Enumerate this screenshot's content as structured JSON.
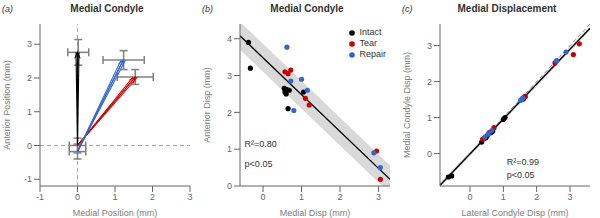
{
  "chart_data": [
    {
      "type": "arrows",
      "title": "Medial Condyle",
      "panel_label": "(a)",
      "xlabel": "Medial Position (mm)",
      "ylabel": "Anterior Position (mm)",
      "xlim": [
        -1,
        3
      ],
      "ylim": [
        -1.2,
        3.6
      ],
      "xticks": [
        -1,
        0,
        1,
        2,
        3
      ],
      "yticks": [
        -1,
        0,
        1,
        2,
        3
      ],
      "reference_lines": {
        "x": [
          0
        ],
        "y": [
          0
        ],
        "line_style": "dashed"
      },
      "error_bars": [
        {
          "x": 0.02,
          "y": 2.76,
          "xerr": 0.28,
          "yerr": 0.38,
          "color": "gray"
        },
        {
          "x": 1.54,
          "y": 2.03,
          "xerr": 0.48,
          "yerr": 0.22,
          "color": "gray"
        },
        {
          "x": 1.23,
          "y": 2.53,
          "xerr": 0.55,
          "yerr": 0.28,
          "color": "gray"
        },
        {
          "x": 0.0,
          "y": 0.0,
          "xerr": 0.22,
          "yerr": 0.22,
          "color": "gray"
        },
        {
          "x": 0.0,
          "y": -0.18,
          "xerr": 0.22,
          "yerr": 0.22,
          "color": "gray"
        }
      ],
      "series": [
        {
          "color": "#000000",
          "lines": [
            [
              0.0,
              0.0,
              -0.04,
              2.76
            ],
            [
              0.0,
              0.0,
              0.04,
              2.76
            ]
          ],
          "arrow": [
            0.0,
            0.0,
            0.0,
            2.76
          ]
        },
        {
          "color": "#cc0000",
          "lines": [
            [
              0.0,
              0.0,
              1.48,
              2.03
            ],
            [
              0.0,
              0.0,
              1.54,
              2.03
            ],
            [
              0.0,
              0.0,
              1.6,
              2.03
            ]
          ],
          "arrow": [
            0.0,
            0.0,
            1.54,
            2.03
          ]
        },
        {
          "color": "#3366cc",
          "lines": [
            [
              0.0,
              -0.18,
              1.16,
              2.53
            ],
            [
              0.0,
              -0.18,
              1.22,
              2.53
            ],
            [
              0.0,
              -0.18,
              1.28,
              2.53
            ]
          ],
          "arrow": [
            0.0,
            -0.18,
            1.22,
            2.53
          ]
        }
      ]
    },
    {
      "type": "scatter",
      "title": "Medial Condyle",
      "panel_label": "(b)",
      "xlabel": "Medial Disp (mm)",
      "ylabel": "Anterior Disp (mm)",
      "xlim": [
        -0.6,
        3.3
      ],
      "ylim": [
        0,
        4.4
      ],
      "xticks": [
        0,
        1,
        2,
        3
      ],
      "yticks": [
        0,
        1,
        2,
        3,
        4
      ],
      "legend": "upper right",
      "series": [
        {
          "name": "Intact",
          "color": "#000000",
          "x": [
            -0.38,
            -0.33,
            0.55,
            0.57,
            0.6,
            0.62,
            0.65,
            0.68,
            1.05
          ],
          "y": [
            3.9,
            3.2,
            2.65,
            2.55,
            2.5,
            2.62,
            2.1,
            2.6,
            2.55
          ]
        },
        {
          "name": "Tear",
          "color": "#cc0000",
          "x": [
            0.57,
            0.65,
            0.72,
            1.1,
            1.2,
            2.95,
            3.05
          ],
          "y": [
            3.1,
            3.05,
            3.15,
            2.38,
            2.2,
            0.95,
            0.18
          ]
        },
        {
          "name": "Repair",
          "color": "#3366cc",
          "x": [
            0.62,
            0.72,
            0.8,
            1.0,
            1.15,
            2.88,
            3.05
          ],
          "y": [
            3.77,
            2.85,
            2.05,
            2.9,
            2.6,
            0.9,
            0.5
          ]
        }
      ],
      "fit": {
        "x": [
          -0.6,
          3.3
        ],
        "y": [
          4.08,
          0.18
        ],
        "ci_width": 0.38,
        "color": "#000000",
        "band_color": "#aaaaaa"
      },
      "annotations": [
        {
          "text": "R²=0.80",
          "x": -0.48,
          "y": 1.05
        },
        {
          "text": "p<0.05",
          "x": -0.48,
          "y": 0.52
        }
      ]
    },
    {
      "type": "scatter",
      "title": "Medial Displacement",
      "panel_label": "(c)",
      "xlabel": "Lateral Condyle Disp (mm)",
      "ylabel": "Medial Condyle Disp (mm)",
      "xlim": [
        -0.9,
        3.6
      ],
      "ylim": [
        -0.9,
        3.6
      ],
      "xticks": [
        0,
        1,
        2,
        3
      ],
      "yticks": [
        0,
        1,
        2,
        3
      ],
      "series": [
        {
          "name": "Intact",
          "color": "#000000",
          "x": [
            -0.65,
            -0.55,
            0.35,
            0.42,
            0.48,
            0.52,
            0.62,
            0.68,
            1.0,
            1.05,
            1.6,
            1.65
          ],
          "y": [
            -0.65,
            -0.62,
            0.32,
            0.42,
            0.44,
            0.5,
            0.58,
            0.62,
            0.95,
            1.0,
            1.52,
            1.58
          ]
        },
        {
          "name": "Tear",
          "color": "#cc0000",
          "x": [
            0.38,
            0.58,
            0.72,
            1.55,
            1.65,
            2.55,
            3.1,
            3.28
          ],
          "y": [
            0.4,
            0.58,
            0.72,
            1.5,
            1.58,
            2.52,
            2.75,
            3.05
          ]
        },
        {
          "name": "Repair",
          "color": "#3366cc",
          "x": [
            0.45,
            0.55,
            0.65,
            1.52,
            1.58,
            2.6,
            2.88
          ],
          "y": [
            0.46,
            0.54,
            0.64,
            1.48,
            1.54,
            2.58,
            2.82
          ]
        }
      ],
      "fit": {
        "x": [
          -0.9,
          3.6
        ],
        "y": [
          -0.88,
          3.48
        ],
        "ci_width": 0.06,
        "color": "#000000",
        "band_color": "#aaaaaa"
      },
      "dashed": {
        "x": [
          -0.9,
          3.6
        ],
        "y": [
          -0.9,
          3.6
        ],
        "color": "#888888",
        "line_style": "dashed"
      },
      "annotations": [
        {
          "text": "R²=0.99",
          "x": 1.1,
          "y": -0.32
        },
        {
          "text": "p<0.05",
          "x": 1.1,
          "y": -0.68
        }
      ]
    }
  ]
}
